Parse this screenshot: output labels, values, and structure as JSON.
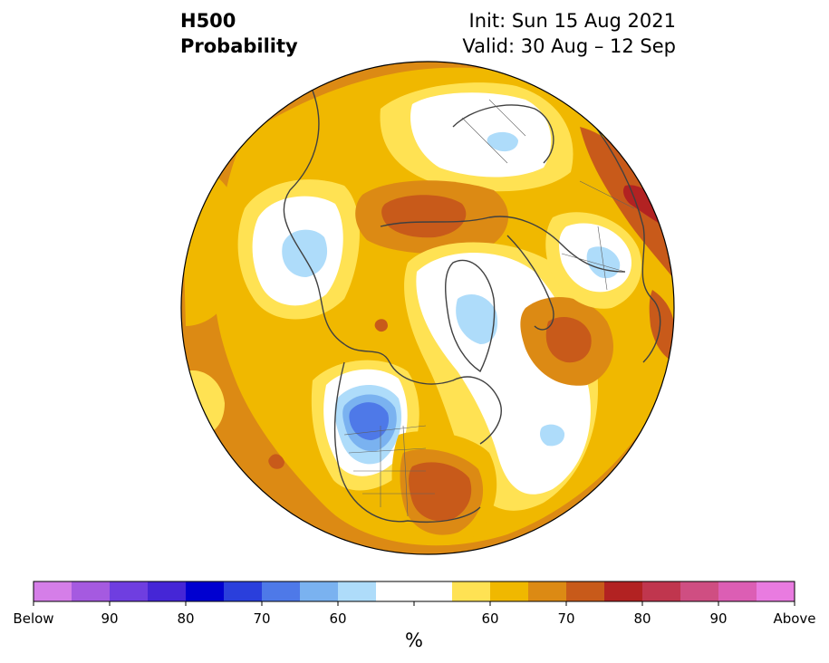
{
  "title": {
    "left_line1": "H500",
    "left_line2": "Probability",
    "right_line1": "Init: Sun 15 Aug 2021",
    "right_line2": "Valid: 30 Aug – 12 Sep"
  },
  "colorbar": {
    "unit_label": "%",
    "colors": [
      "#d57ee8",
      "#a55ae0",
      "#6f3ee0",
      "#4526d6",
      "#0000d0",
      "#2a3fdc",
      "#4e79e8",
      "#7ab2f0",
      "#aedcfa",
      "#ffffff",
      "#ffffff",
      "#ffe253",
      "#f0b800",
      "#dc8a14",
      "#c85a1a",
      "#b22222",
      "#c0364e",
      "#cf4e82",
      "#dc5eb4",
      "#e97be0"
    ],
    "tick_labels": [
      "Below",
      "90",
      "80",
      "70",
      "60",
      "60",
      "70",
      "80",
      "90",
      "Above"
    ]
  },
  "map": {
    "projection": "north-polar-stereographic",
    "palette": {
      "near_normal": "#ffffff",
      "above_50": "#ffe253",
      "above_60": "#f0b800",
      "above_70": "#dc8a14",
      "above_80": "#c85a1a",
      "above_90": "#b22222",
      "below_50": "#aedcfa",
      "below_60": "#7ab2f0",
      "below_70": "#4e79e8",
      "coast": "#404040"
    }
  }
}
